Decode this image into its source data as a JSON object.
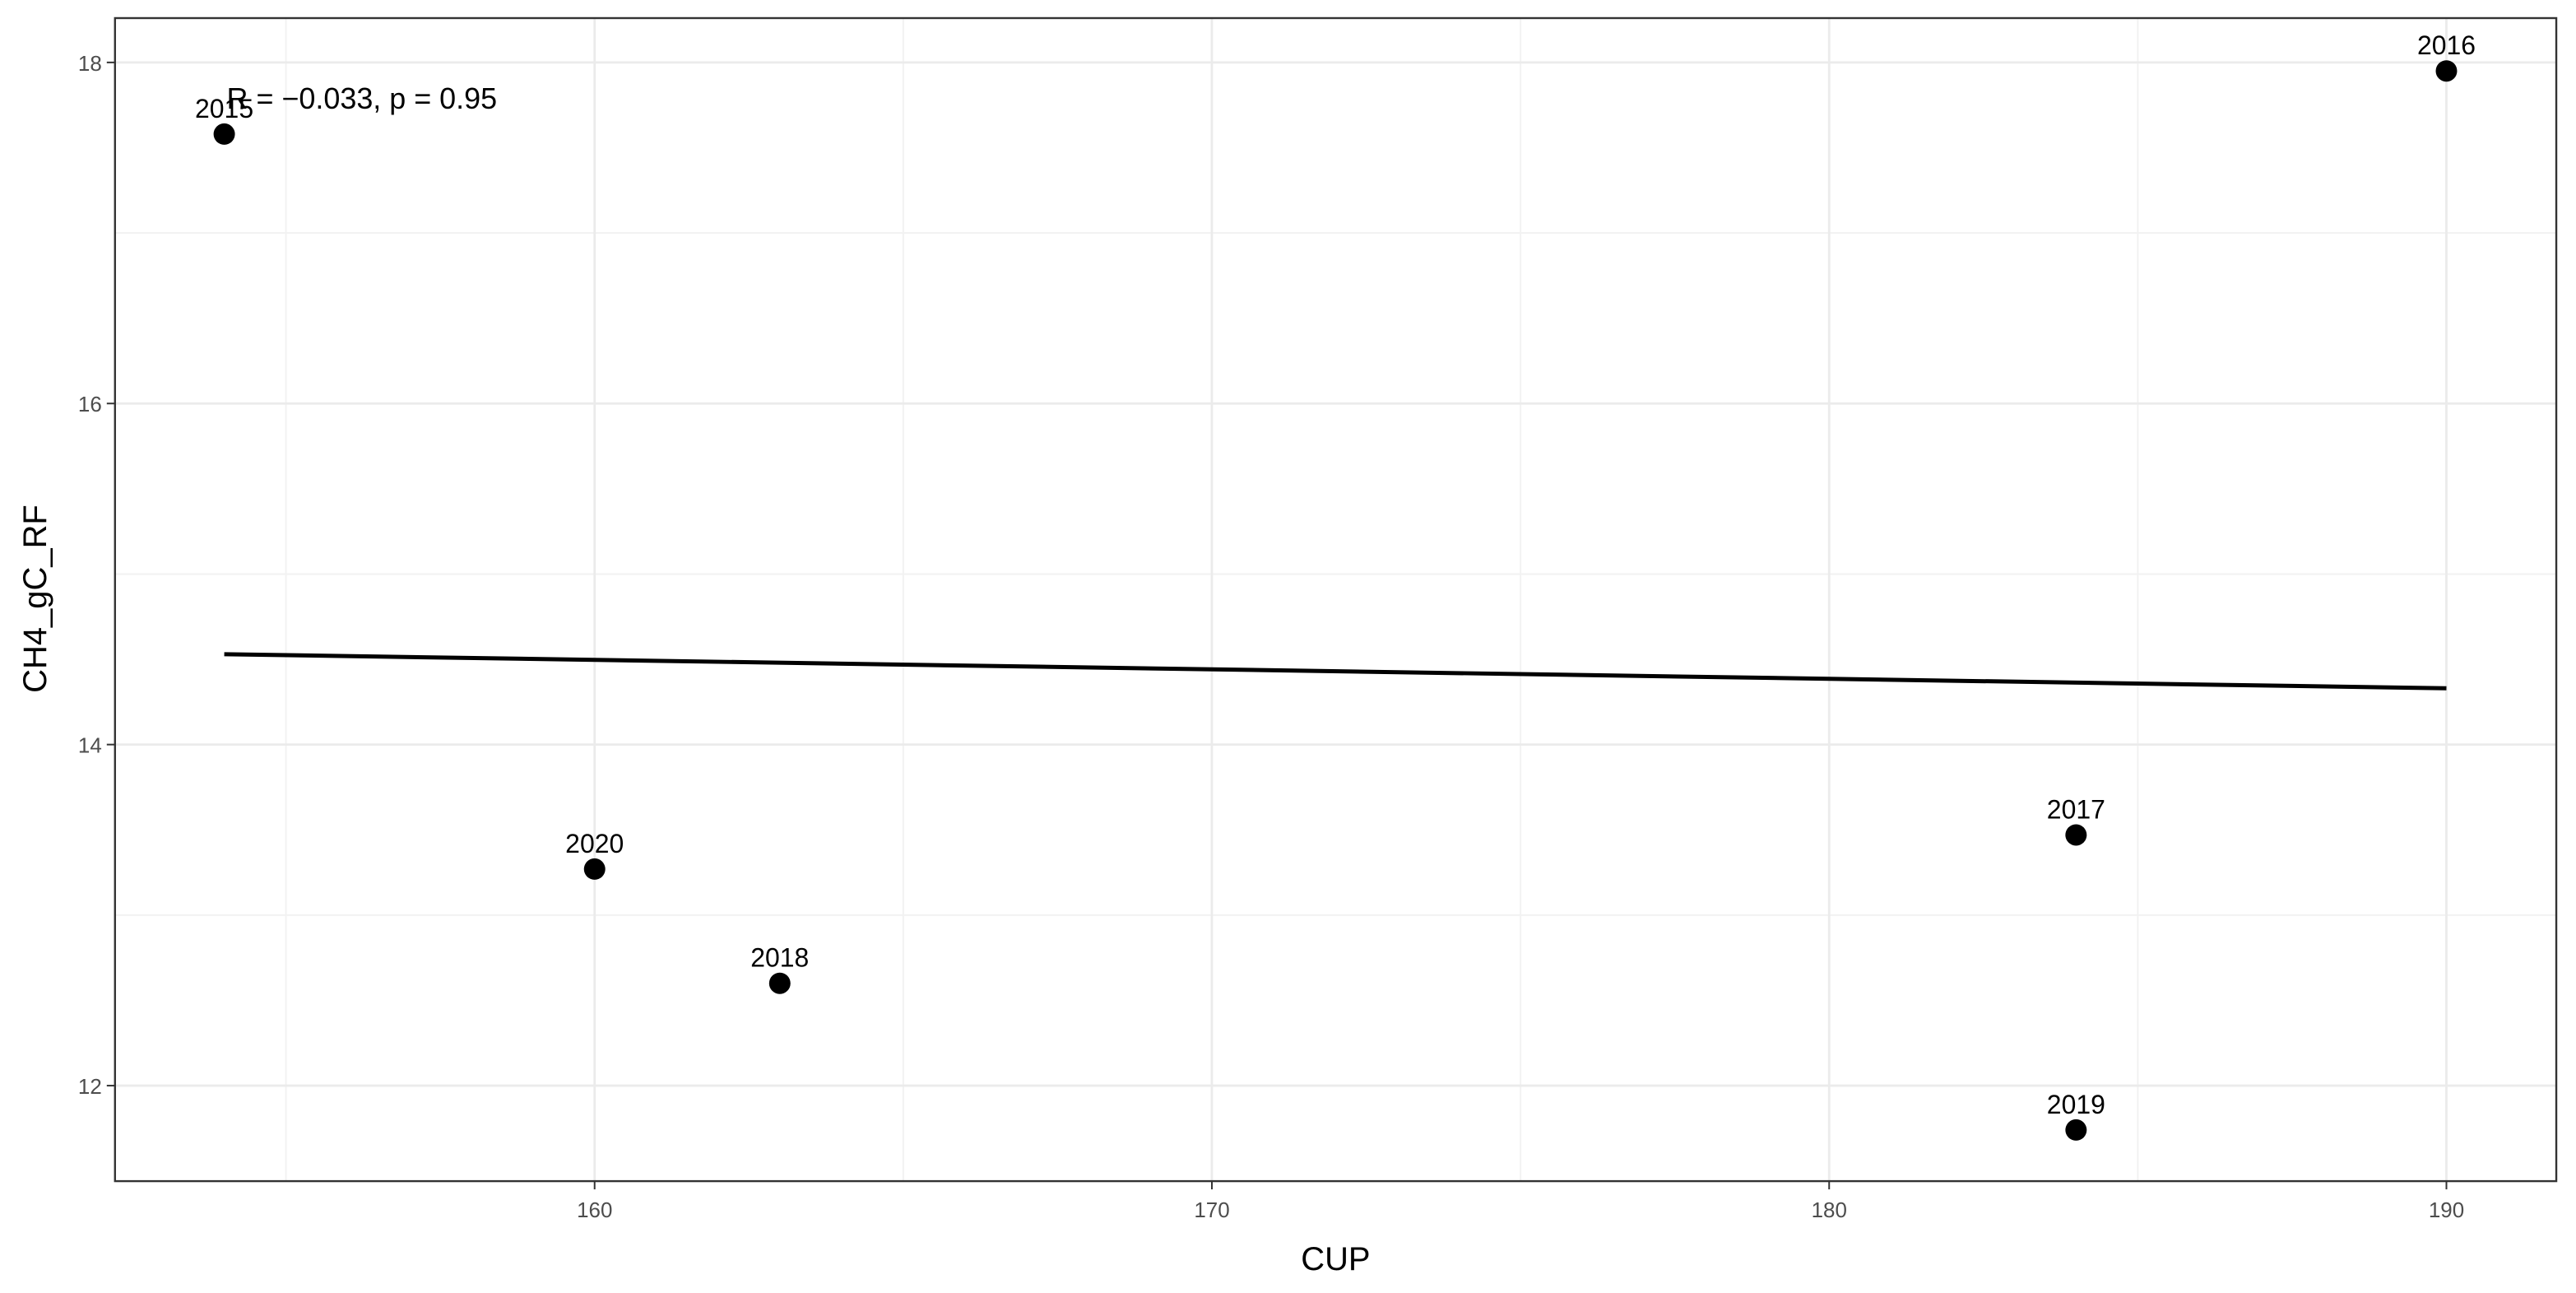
{
  "chart_data": {
    "type": "scatter",
    "x_label": "CUP",
    "y_label": "CH4_gC_RF",
    "annotation": "R = −0.033, p = 0.95",
    "x": [
      154,
      190,
      184,
      163,
      184,
      160
    ],
    "values": [
      17.58,
      17.95,
      13.47,
      12.6,
      11.74,
      13.27
    ],
    "labels": [
      "2015",
      "2016",
      "2017",
      "2018",
      "2019",
      "2020"
    ],
    "color": "#000000",
    "fit_line": {
      "x": [
        154,
        190
      ],
      "values": [
        14.53,
        14.33
      ],
      "color": "#000000"
    },
    "xlim": [
      152.23,
      191.78
    ],
    "ylim": [
      11.44,
      18.26
    ],
    "xticks": [
      160,
      170,
      180,
      190
    ],
    "yticks": [
      12,
      14,
      16,
      18
    ],
    "x_minor_grid": [
      155,
      165,
      175,
      185
    ],
    "y_minor_grid": [
      13,
      15,
      17
    ],
    "grid": true
  }
}
